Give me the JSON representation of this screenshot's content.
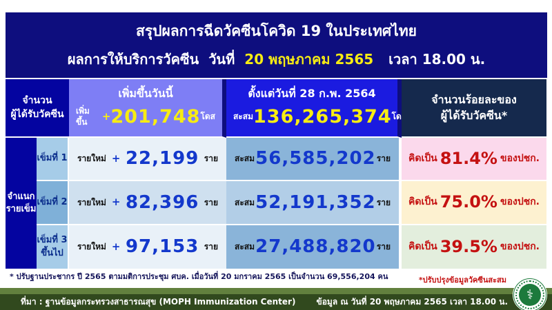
{
  "title": {
    "line1": "สรุปผลการฉีดวัคซีนโควิด 19 ในประเทศไทย",
    "line2_prefix": "ผลการให้บริการวัคซีน",
    "line2_label": "วันที่",
    "line2_date": "20 พฤษภาคม 2565",
    "line2_time": "เวลา 18.00 น."
  },
  "table": {
    "recipients_header_line1": "จำนวน",
    "recipients_header_line2": "ผู้ได้รับวัคซีน",
    "today_header": "เพิ่มขึ้นวันนี้",
    "today_label": "เพิ่มขึ้น",
    "plus": "+",
    "today_value": "201,748",
    "dose_unit": "โดส",
    "since_header": "ตั้งแต่วันที่ 28 ก.พ. 2564",
    "cumulative_label": "สะสม",
    "since_value": "136,265,374",
    "percent_header_line1": "จำนวนร้อยละของ",
    "percent_header_line2": "ผู้ได้รับวัคซีน*",
    "classify_line1": "จำแนก",
    "classify_line2": "รายเข็ม",
    "new_label": "รายใหม่",
    "person_unit": "ราย",
    "pct_label": "คิดเป็น",
    "pct_unit": "ของปชก.",
    "rows": [
      {
        "dose_line1": "เข็มที่ 1",
        "dose_line2": "",
        "new_value": "22,199",
        "cum_value": "56,585,202",
        "pct_value": "81.4%"
      },
      {
        "dose_line1": "เข็มที่ 2",
        "dose_line2": "",
        "new_value": "82,396",
        "cum_value": "52,191,352",
        "pct_value": "75.0%"
      },
      {
        "dose_line1": "เข็มที่ 3",
        "dose_line2": "ขึ้นไป",
        "new_value": "97,153",
        "cum_value": "27,488,820",
        "pct_value": "39.5%"
      }
    ]
  },
  "footnote": "* ปรับฐานประชากร ปี 2565 ตามมติการประชุม ศบค. เมื่อวันที่ 20  มกราคม 2565 เป็นจำนวน 69,556,204 คน",
  "note_right": "*ปรับปรุงข้อมูลวัคซีนสะสม",
  "footer": {
    "source": "ที่มา : ฐานข้อมูลกระทรวงสาธารณสุข (MOPH  Immunization Center)",
    "as_of": "ข้อมูล ณ วันที่ 20 พฤษภาคม 2565 เวลา 18.00 น.",
    "seal_glyph": "⚕"
  },
  "colors": {
    "header_navy": "#0e0e7e",
    "sidebar_blue": "#0404a0",
    "today_header_bg": "#7e7ef5",
    "since_header_bg": "#1b1be0",
    "percent_header_bg": "#15294d",
    "highlight_yellow": "#f7ec13",
    "number_blue": "#1338cc",
    "alert_red": "#c41111",
    "row_pink": "#fbd9ec",
    "row_cream": "#fdf1d0",
    "row_green": "#e3eedd",
    "footer_green_dark": "#31491e",
    "footer_green_light": "#62803e"
  }
}
